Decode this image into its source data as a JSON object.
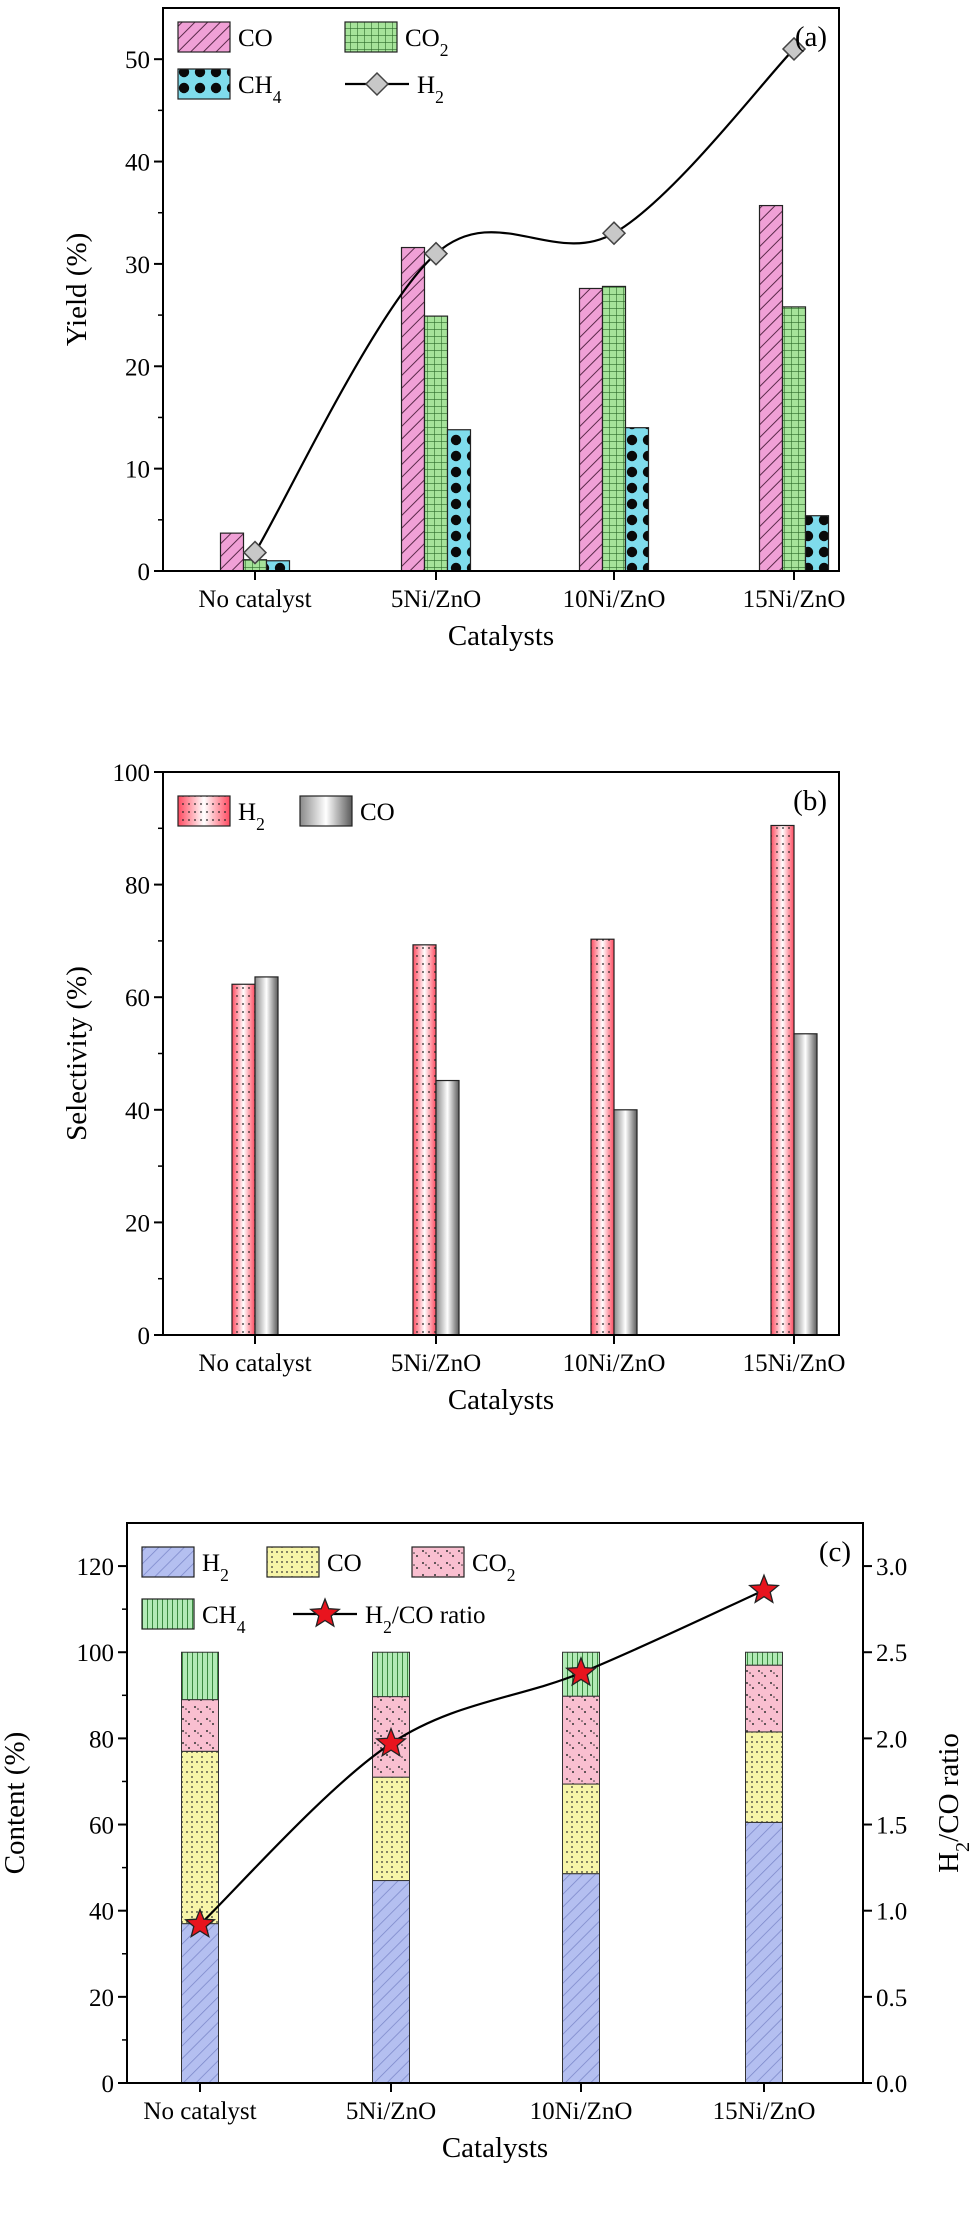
{
  "chart_data": [
    {
      "type": "bar",
      "panel_label": "(a)",
      "categories": [
        "No catalyst",
        "5Ni/ZnO",
        "10Ni/ZnO",
        "15Ni/ZnO"
      ],
      "xlabel": "Catalysts",
      "ylabel": "Yield (%)",
      "ylim": [
        0,
        55
      ],
      "yticks": [
        0,
        10,
        20,
        30,
        40,
        50
      ],
      "legend_position": "top-left",
      "grid": false,
      "series": [
        {
          "name": "CO",
          "label_main": "CO",
          "label_sub": "",
          "kind": "bar",
          "values": [
            3.7,
            31.6,
            27.6,
            35.7
          ],
          "color": "#f0a0d6",
          "pattern": "diagonal-hatch"
        },
        {
          "name": "CO2",
          "label_main": "CO",
          "label_sub": "2",
          "kind": "bar",
          "values": [
            1.1,
            24.9,
            27.8,
            25.8
          ],
          "color": "#a6e39a",
          "pattern": "grid"
        },
        {
          "name": "CH4",
          "label_main": "CH",
          "label_sub": "4",
          "kind": "bar",
          "values": [
            1.0,
            13.8,
            14.0,
            5.4
          ],
          "color": "#7fdcec",
          "pattern": "dark-dots"
        },
        {
          "name": "H2",
          "label_main": "H",
          "label_sub": "2",
          "kind": "line",
          "values": [
            1.8,
            31.0,
            33.0,
            51.0
          ],
          "color": "#000000",
          "marker": "diamond",
          "marker_color": "#c8c8c8"
        }
      ]
    },
    {
      "type": "bar",
      "panel_label": "(b)",
      "categories": [
        "No catalyst",
        "5Ni/ZnO",
        "10Ni/ZnO",
        "15Ni/ZnO"
      ],
      "xlabel": "Catalysts",
      "ylabel": "Selectivity (%)",
      "ylim": [
        0,
        100
      ],
      "yticks": [
        0,
        20,
        40,
        60,
        80,
        100
      ],
      "legend_position": "top-left",
      "grid": false,
      "series": [
        {
          "name": "H2",
          "label_main": "H",
          "label_sub": "2",
          "kind": "bar",
          "values": [
            62.3,
            69.3,
            70.3,
            90.5
          ],
          "color": "#ff5a6a",
          "pattern": "dotted-gradient"
        },
        {
          "name": "CO",
          "label_main": "CO",
          "label_sub": "",
          "kind": "bar",
          "values": [
            63.6,
            45.2,
            40.0,
            53.5
          ],
          "color": "#9a9a9a",
          "pattern": "gray-gradient"
        }
      ]
    },
    {
      "type": "bar",
      "stacked": true,
      "panel_label": "(c)",
      "categories": [
        "No catalyst",
        "5Ni/ZnO",
        "10Ni/ZnO",
        "15Ni/ZnO"
      ],
      "xlabel": "Catalysts",
      "ylabel": "Content (%)",
      "y2label_main": "H",
      "y2label_sub": "2",
      "y2label_rest": "/CO ratio",
      "ylim": [
        0,
        130
      ],
      "yticks": [
        0,
        20,
        40,
        60,
        80,
        100,
        120
      ],
      "y2lim": [
        0,
        3.25
      ],
      "y2ticks": [
        "0.0",
        "0.5",
        "1.0",
        "1.5",
        "2.0",
        "2.5",
        "3.0"
      ],
      "legend_position": "top-left",
      "grid": false,
      "series": [
        {
          "name": "H2",
          "label_main": "H",
          "label_sub": "2",
          "kind": "bar",
          "values": [
            37.0,
            47.0,
            48.6,
            60.5
          ],
          "color": "#b4bff0",
          "pattern": "diagonal-hatch-blue"
        },
        {
          "name": "CO",
          "label_main": "CO",
          "label_sub": "",
          "kind": "bar",
          "values": [
            40.0,
            24.0,
            20.8,
            21.0
          ],
          "color": "#f7f5a8",
          "pattern": "dotted-grid"
        },
        {
          "name": "CO2",
          "label_main": "CO",
          "label_sub": "2",
          "kind": "bar",
          "values": [
            12.0,
            18.7,
            20.4,
            15.5
          ],
          "color": "#f9bfd0",
          "pattern": "pink-dots"
        },
        {
          "name": "CH4",
          "label_main": "CH",
          "label_sub": "4",
          "kind": "bar",
          "values": [
            11.0,
            10.3,
            10.2,
            3.0
          ],
          "color": "#b2eab6",
          "pattern": "vertical-lines"
        },
        {
          "name": "H2/CO ratio",
          "label_main": "H",
          "label_sub": "2",
          "label_rest": "/CO ratio",
          "kind": "line",
          "axis": "right",
          "values": [
            0.92,
            1.97,
            2.38,
            2.86
          ],
          "color": "#000000",
          "marker": "star",
          "marker_color": "#e8141e"
        }
      ]
    }
  ]
}
